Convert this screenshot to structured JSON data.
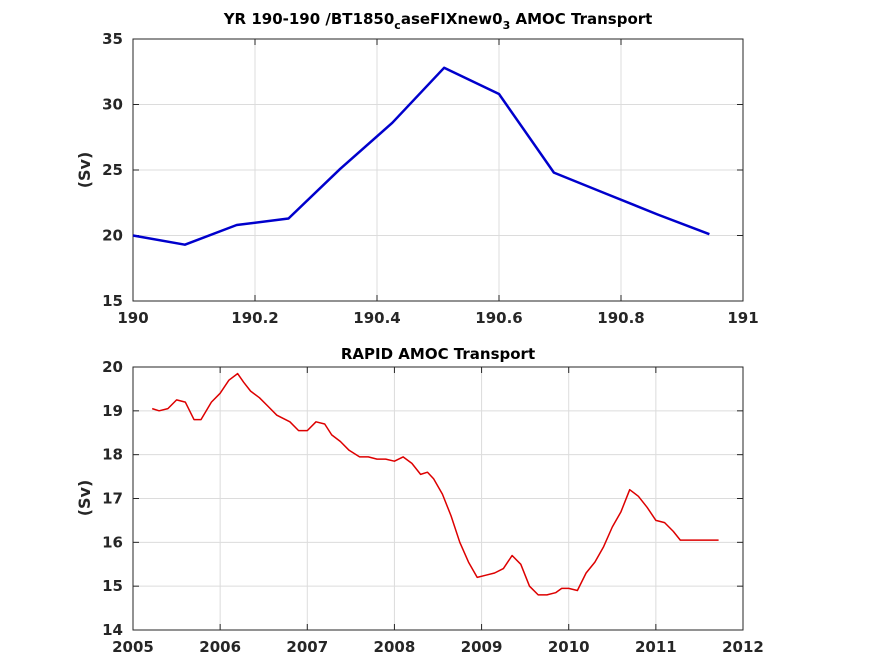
{
  "chart_data": [
    {
      "type": "line",
      "title_parts": {
        "main": "YR 190-190 /BT1850",
        "sub1": "c",
        "mid": "aseFIXnew0",
        "sub2": "3",
        "end": " AMOC Transport"
      },
      "ylabel": "(Sv)",
      "xlim": [
        190,
        191
      ],
      "ylim": [
        15,
        35
      ],
      "xticks": [
        190,
        190.2,
        190.4,
        190.6,
        190.8,
        191
      ],
      "xtick_labels": [
        "190",
        "190.2",
        "190.4",
        "190.6",
        "190.8",
        "191"
      ],
      "yticks": [
        15,
        20,
        25,
        30,
        35
      ],
      "ytick_labels": [
        "15",
        "20",
        "25",
        "30",
        "35"
      ],
      "grid": true,
      "color": "#0000cc",
      "x": [
        190.0,
        190.085,
        190.17,
        190.255,
        190.34,
        190.425,
        190.51,
        190.6,
        190.69,
        190.775,
        190.86,
        190.945
      ],
      "y": [
        20.0,
        19.3,
        20.8,
        21.3,
        25.1,
        28.6,
        32.8,
        30.8,
        24.8,
        23.2,
        21.6,
        20.1
      ]
    },
    {
      "type": "line",
      "title": "RAPID AMOC Transport",
      "ylabel": "(Sv)",
      "xlim": [
        2005,
        2012
      ],
      "ylim": [
        14,
        20
      ],
      "xticks": [
        2005,
        2006,
        2007,
        2008,
        2009,
        2010,
        2011,
        2012
      ],
      "xtick_labels": [
        "2005",
        "2006",
        "2007",
        "2008",
        "2009",
        "2010",
        "2011",
        "2012"
      ],
      "yticks": [
        14,
        15,
        16,
        17,
        18,
        19,
        20
      ],
      "ytick_labels": [
        "14",
        "15",
        "16",
        "17",
        "18",
        "19",
        "20"
      ],
      "grid": true,
      "color": "#dd0000",
      "x": [
        2005.22,
        2005.3,
        2005.4,
        2005.5,
        2005.6,
        2005.7,
        2005.78,
        2005.9,
        2006.0,
        2006.1,
        2006.2,
        2006.27,
        2006.35,
        2006.45,
        2006.55,
        2006.65,
        2006.8,
        2006.9,
        2007.0,
        2007.1,
        2007.2,
        2007.28,
        2007.38,
        2007.48,
        2007.6,
        2007.7,
        2007.8,
        2007.9,
        2008.0,
        2008.1,
        2008.2,
        2008.3,
        2008.38,
        2008.45,
        2008.55,
        2008.65,
        2008.75,
        2008.85,
        2008.95,
        2009.05,
        2009.15,
        2009.25,
        2009.35,
        2009.45,
        2009.55,
        2009.65,
        2009.75,
        2009.85,
        2009.92,
        2010.0,
        2010.1,
        2010.2,
        2010.3,
        2010.4,
        2010.5,
        2010.6,
        2010.7,
        2010.8,
        2010.9,
        2011.0,
        2011.1,
        2011.2,
        2011.28,
        2011.35,
        2011.45,
        2011.55,
        2011.65,
        2011.72
      ],
      "y": [
        19.05,
        19.0,
        19.05,
        19.25,
        19.2,
        18.8,
        18.8,
        19.2,
        19.4,
        19.7,
        19.85,
        19.65,
        19.45,
        19.3,
        19.1,
        18.9,
        18.75,
        18.55,
        18.55,
        18.75,
        18.7,
        18.45,
        18.3,
        18.1,
        17.95,
        17.95,
        17.9,
        17.9,
        17.85,
        17.95,
        17.8,
        17.55,
        17.6,
        17.45,
        17.1,
        16.6,
        16.0,
        15.55,
        15.2,
        15.25,
        15.3,
        15.4,
        15.7,
        15.5,
        15.0,
        14.8,
        14.8,
        14.85,
        14.95,
        14.95,
        14.9,
        15.3,
        15.55,
        15.9,
        16.35,
        16.7,
        17.2,
        17.05,
        16.8,
        16.5,
        16.45,
        16.25,
        16.05,
        16.05,
        16.05,
        16.05,
        16.05,
        16.05
      ]
    }
  ]
}
